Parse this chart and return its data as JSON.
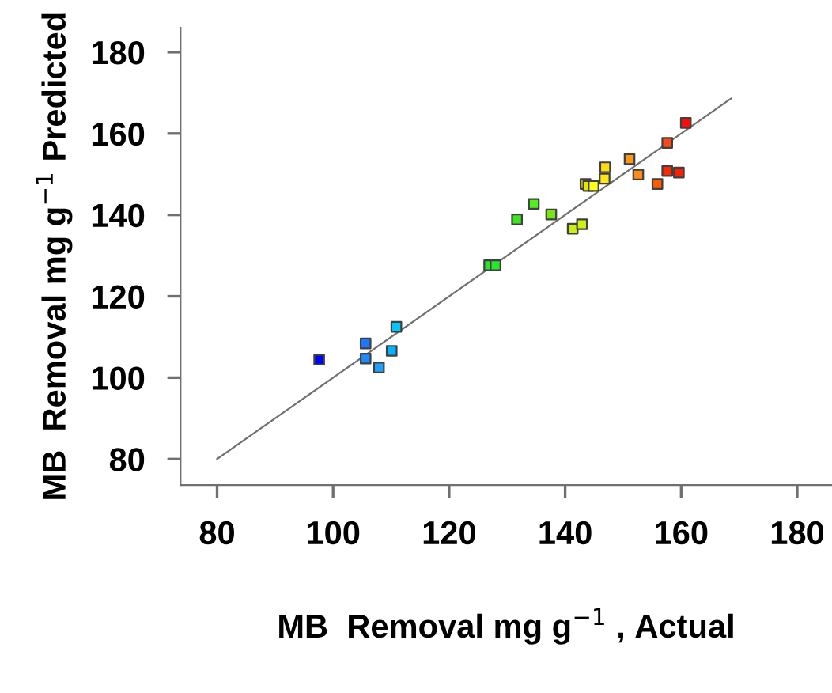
{
  "chart_data": {
    "type": "scatter",
    "xlabel": "MB  Removal mg g$^{−1}$ , Actual",
    "ylabel": "MB  Removal mg g$^{−1}$ Predicted",
    "grid": false,
    "legend": false,
    "xlim": [
      73.7,
      186
    ],
    "ylim": [
      73.6,
      186
    ],
    "xticks": [
      80,
      100,
      120,
      140,
      160,
      180
    ],
    "yticks": [
      80,
      100,
      120,
      140,
      160,
      180
    ],
    "series": [
      {
        "marker": "square",
        "x": [
          97.6,
          105.6,
          105.6,
          107.9,
          110.1,
          110.9,
          126.9,
          128.0,
          131.7,
          134.6,
          137.6,
          141.3,
          142.9,
          143.5,
          144.0,
          144.9,
          146.8,
          146.9,
          151.1,
          152.6,
          155.9,
          157.6,
          157.6,
          159.6,
          160.8
        ],
        "values": [
          104.4,
          108.4,
          104.7,
          102.5,
          106.6,
          112.5,
          127.6,
          127.6,
          138.9,
          142.7,
          140.1,
          136.6,
          137.7,
          147.6,
          147.1,
          147.1,
          148.9,
          151.7,
          153.7,
          149.9,
          147.6,
          157.7,
          150.8,
          150.4,
          162.6
        ],
        "colors": [
          "#0000ff",
          "#1e78ff",
          "#1e8cff",
          "#1ea0ff",
          "#00b4ff",
          "#00c8ff",
          "#28e628",
          "#28e628",
          "#3ce61e",
          "#50f01e",
          "#78e614",
          "#c8f014",
          "#d2f014",
          "#c8c800",
          "#e6e600",
          "#ffff14",
          "#ffe614",
          "#ffdc14",
          "#ff9614",
          "#ff8c14",
          "#ff5a00",
          "#ff4614",
          "#ff2800",
          "#ff1e00",
          "#ff0a0a"
        ]
      },
      {
        "type": "line",
        "color": "#707070",
        "x": [
          80,
          168.6
        ],
        "values": [
          80,
          168.6
        ]
      }
    ]
  }
}
